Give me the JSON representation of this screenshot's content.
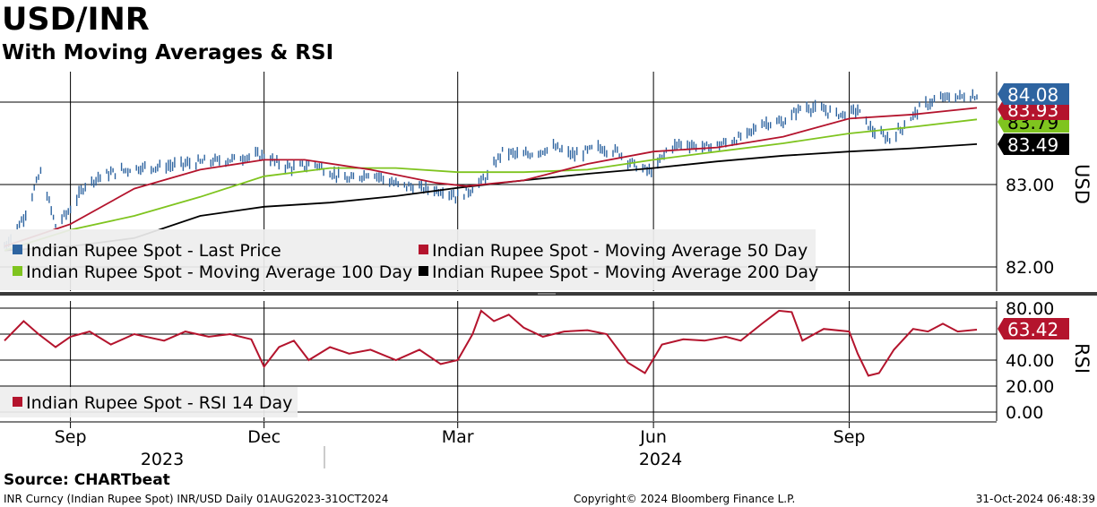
{
  "header": {
    "title": "USD/INR",
    "subtitle": "With Moving Averages & RSI"
  },
  "source": "Source: CHARTbeat",
  "footer": {
    "left": "INR Curncy (Indian Rupee Spot) INR/USD  Daily 01AUG2023-31OCT2024",
    "center": "Copyright© 2024 Bloomberg Finance L.P.",
    "right": "31-Oct-2024 06:48:39"
  },
  "colors": {
    "price": "#2e64a0",
    "ma50": "#b4142d",
    "ma100": "#7fc41f",
    "ma200": "#000000",
    "rsi": "#b4142d",
    "legend_bg": "#eeeeee"
  },
  "chart_data": [
    {
      "type": "line",
      "panel": "price",
      "axis_label": "USD",
      "y_ticks": [
        "83.00",
        "82.00"
      ],
      "x_months": [
        "Sep",
        "Dec",
        "Mar",
        "Jun",
        "Sep"
      ],
      "x_years": [
        "2023",
        "2024"
      ],
      "x_range": [
        "2023-08-01",
        "2024-10-31"
      ],
      "series": [
        {
          "name": "Indian Rupee Spot - Last Price",
          "style": "bars",
          "last_value": "84.08",
          "points": [
            [
              "2023-08-01",
              82.25
            ],
            [
              "2023-08-10",
              82.6
            ],
            [
              "2023-08-18",
              83.15
            ],
            [
              "2023-08-25",
              82.5
            ],
            [
              "2023-09-01",
              82.7
            ],
            [
              "2023-09-08",
              83.0
            ],
            [
              "2023-09-15",
              83.1
            ],
            [
              "2023-09-22",
              83.15
            ],
            [
              "2023-10-01",
              83.2
            ],
            [
              "2023-10-15",
              83.22
            ],
            [
              "2023-10-25",
              83.25
            ],
            [
              "2023-11-05",
              83.28
            ],
            [
              "2023-11-15",
              83.3
            ],
            [
              "2023-11-25",
              83.35
            ],
            [
              "2023-12-01",
              83.35
            ],
            [
              "2023-12-08",
              83.25
            ],
            [
              "2023-12-15",
              83.2
            ],
            [
              "2023-12-25",
              83.25
            ],
            [
              "2024-01-01",
              83.15
            ],
            [
              "2024-01-10",
              83.05
            ],
            [
              "2024-01-20",
              83.15
            ],
            [
              "2024-02-01",
              83.0
            ],
            [
              "2024-02-15",
              82.95
            ],
            [
              "2024-02-25",
              82.92
            ],
            [
              "2024-03-01",
              82.85
            ],
            [
              "2024-03-08",
              82.95
            ],
            [
              "2024-03-15",
              83.1
            ],
            [
              "2024-03-22",
              83.4
            ],
            [
              "2024-04-01",
              83.35
            ],
            [
              "2024-04-15",
              83.45
            ],
            [
              "2024-04-25",
              83.35
            ],
            [
              "2024-05-05",
              83.45
            ],
            [
              "2024-05-15",
              83.4
            ],
            [
              "2024-05-25",
              83.2
            ],
            [
              "2024-06-01",
              83.15
            ],
            [
              "2024-06-08",
              83.45
            ],
            [
              "2024-06-15",
              83.5
            ],
            [
              "2024-06-25",
              83.45
            ],
            [
              "2024-07-05",
              83.5
            ],
            [
              "2024-07-15",
              83.6
            ],
            [
              "2024-07-22",
              83.75
            ],
            [
              "2024-08-01",
              83.75
            ],
            [
              "2024-08-10",
              83.95
            ],
            [
              "2024-08-20",
              83.9
            ],
            [
              "2024-08-28",
              83.85
            ],
            [
              "2024-09-05",
              83.9
            ],
            [
              "2024-09-12",
              83.65
            ],
            [
              "2024-09-20",
              83.55
            ],
            [
              "2024-09-28",
              83.75
            ],
            [
              "2024-10-05",
              83.95
            ],
            [
              "2024-10-15",
              84.05
            ],
            [
              "2024-10-25",
              84.07
            ],
            [
              "2024-10-31",
              84.08
            ]
          ]
        },
        {
          "name": "Indian Rupee Spot - Moving Average 50 Day",
          "last_value": "83.93",
          "points": [
            [
              "2023-08-01",
              82.25
            ],
            [
              "2023-09-01",
              82.52
            ],
            [
              "2023-10-01",
              82.95
            ],
            [
              "2023-11-01",
              83.18
            ],
            [
              "2023-12-01",
              83.3
            ],
            [
              "2023-12-20",
              83.3
            ],
            [
              "2024-01-20",
              83.18
            ],
            [
              "2024-02-20",
              83.02
            ],
            [
              "2024-03-05",
              82.98
            ],
            [
              "2024-04-01",
              83.05
            ],
            [
              "2024-05-01",
              83.25
            ],
            [
              "2024-06-01",
              83.4
            ],
            [
              "2024-07-01",
              83.45
            ],
            [
              "2024-08-01",
              83.58
            ],
            [
              "2024-09-01",
              83.8
            ],
            [
              "2024-10-01",
              83.85
            ],
            [
              "2024-10-31",
              83.93
            ]
          ]
        },
        {
          "name": "Indian Rupee Spot - Moving Average 100 Day",
          "last_value": "83.79",
          "points": [
            [
              "2023-08-01",
              82.2
            ],
            [
              "2023-09-01",
              82.45
            ],
            [
              "2023-10-01",
              82.62
            ],
            [
              "2023-11-01",
              82.85
            ],
            [
              "2023-12-01",
              83.1
            ],
            [
              "2024-01-01",
              83.2
            ],
            [
              "2024-02-01",
              83.2
            ],
            [
              "2024-03-01",
              83.15
            ],
            [
              "2024-04-01",
              83.15
            ],
            [
              "2024-05-01",
              83.18
            ],
            [
              "2024-06-01",
              83.3
            ],
            [
              "2024-07-01",
              83.4
            ],
            [
              "2024-08-01",
              83.5
            ],
            [
              "2024-09-01",
              83.62
            ],
            [
              "2024-10-01",
              83.7
            ],
            [
              "2024-10-31",
              83.79
            ]
          ]
        },
        {
          "name": "Indian Rupee Spot - Moving Average 200 Day",
          "last_value": "83.49",
          "points": [
            [
              "2023-08-01",
              82.2
            ],
            [
              "2023-09-01",
              82.25
            ],
            [
              "2023-10-01",
              82.35
            ],
            [
              "2023-11-01",
              82.62
            ],
            [
              "2023-12-01",
              82.73
            ],
            [
              "2024-01-01",
              82.78
            ],
            [
              "2024-02-01",
              82.86
            ],
            [
              "2024-03-01",
              82.96
            ],
            [
              "2024-04-01",
              83.05
            ],
            [
              "2024-05-01",
              83.13
            ],
            [
              "2024-06-01",
              83.2
            ],
            [
              "2024-07-01",
              83.28
            ],
            [
              "2024-08-01",
              83.35
            ],
            [
              "2024-09-01",
              83.4
            ],
            [
              "2024-10-01",
              83.44
            ],
            [
              "2024-10-31",
              83.49
            ]
          ]
        }
      ]
    },
    {
      "type": "line",
      "panel": "rsi",
      "axis_label": "RSI",
      "y_ticks": [
        "80.00",
        "60.00",
        "40.00",
        "20.00",
        "0.00"
      ],
      "series": [
        {
          "name": "Indian Rupee Spot - RSI 14 Day",
          "last_value": "63.42",
          "points": [
            [
              "2023-08-01",
              55
            ],
            [
              "2023-08-10",
              70
            ],
            [
              "2023-08-17",
              60
            ],
            [
              "2023-08-25",
              50
            ],
            [
              "2023-09-01",
              58
            ],
            [
              "2023-09-10",
              62
            ],
            [
              "2023-09-20",
              52
            ],
            [
              "2023-10-01",
              60
            ],
            [
              "2023-10-15",
              55
            ],
            [
              "2023-10-25",
              62
            ],
            [
              "2023-11-05",
              58
            ],
            [
              "2023-11-15",
              60
            ],
            [
              "2023-11-25",
              56
            ],
            [
              "2023-12-01",
              35
            ],
            [
              "2023-12-08",
              50
            ],
            [
              "2023-12-15",
              55
            ],
            [
              "2023-12-22",
              40
            ],
            [
              "2024-01-01",
              50
            ],
            [
              "2024-01-10",
              45
            ],
            [
              "2024-01-20",
              48
            ],
            [
              "2024-02-01",
              40
            ],
            [
              "2024-02-12",
              48
            ],
            [
              "2024-02-22",
              37
            ],
            [
              "2024-03-01",
              40
            ],
            [
              "2024-03-08",
              60
            ],
            [
              "2024-03-12",
              78
            ],
            [
              "2024-03-18",
              70
            ],
            [
              "2024-03-25",
              75
            ],
            [
              "2024-04-01",
              65
            ],
            [
              "2024-04-10",
              58
            ],
            [
              "2024-04-20",
              62
            ],
            [
              "2024-05-01",
              63
            ],
            [
              "2024-05-10",
              60
            ],
            [
              "2024-05-20",
              38
            ],
            [
              "2024-05-28",
              30
            ],
            [
              "2024-06-05",
              52
            ],
            [
              "2024-06-15",
              56
            ],
            [
              "2024-06-25",
              55
            ],
            [
              "2024-07-05",
              58
            ],
            [
              "2024-07-12",
              55
            ],
            [
              "2024-07-22",
              68
            ],
            [
              "2024-07-30",
              78
            ],
            [
              "2024-08-05",
              77
            ],
            [
              "2024-08-10",
              55
            ],
            [
              "2024-08-20",
              64
            ],
            [
              "2024-09-01",
              62
            ],
            [
              "2024-09-05",
              45
            ],
            [
              "2024-09-10",
              28
            ],
            [
              "2024-09-15",
              30
            ],
            [
              "2024-09-22",
              48
            ],
            [
              "2024-10-01",
              64
            ],
            [
              "2024-10-08",
              62
            ],
            [
              "2024-10-15",
              68
            ],
            [
              "2024-10-22",
              62
            ],
            [
              "2024-10-31",
              63.42
            ]
          ]
        }
      ]
    }
  ]
}
